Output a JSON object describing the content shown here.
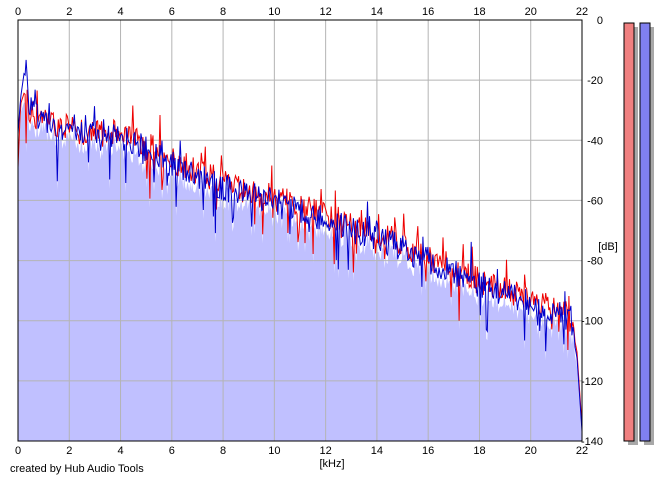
{
  "chart_data": {
    "type": "area",
    "title": "",
    "xlabel": "[kHz]",
    "ylabel": "[dB]",
    "xlim": [
      0,
      22
    ],
    "ylim": [
      -140,
      0
    ],
    "x_ticks": [
      "0",
      "2",
      "4",
      "6",
      "8",
      "10",
      "12",
      "14",
      "16",
      "18",
      "20",
      "22"
    ],
    "y_ticks": [
      "0",
      "-20",
      "-40",
      "-60",
      "-80",
      "-100",
      "-120",
      "-140"
    ],
    "y_ticks_values": [
      0,
      -20,
      -40,
      -60,
      -80,
      -100,
      -120,
      -140
    ],
    "x_ticks_values": [
      0,
      2,
      4,
      6,
      8,
      10,
      12,
      14,
      16,
      18,
      20,
      22
    ],
    "grid": true,
    "series": [
      {
        "color": "#ee0000",
        "x": [
          0,
          0.1,
          0.25,
          0.5,
          1,
          1.5,
          2,
          3,
          4,
          5,
          6,
          7,
          8,
          9,
          10,
          11,
          12,
          13,
          14,
          15,
          16,
          17,
          18,
          19,
          20,
          20.5,
          21,
          21.5,
          21.8,
          22
        ],
        "values": [
          -49,
          -28,
          -24,
          -31,
          -33,
          -35,
          -36,
          -38,
          -37,
          -41,
          -47,
          -50,
          -54,
          -57,
          -59,
          -62,
          -64,
          -68,
          -71,
          -74,
          -79,
          -82,
          -87,
          -90,
          -93,
          -95,
          -96,
          -98,
          -110,
          -135
        ]
      },
      {
        "color": "#0000cc",
        "x": [
          0,
          0.1,
          0.25,
          0.5,
          1,
          1.5,
          2,
          3,
          4,
          5,
          6,
          7,
          8,
          9,
          10,
          11,
          12,
          13,
          14,
          15,
          16,
          17,
          18,
          19,
          20,
          20.5,
          21,
          21.5,
          21.8,
          22
        ],
        "values": [
          -38,
          -26,
          -17,
          -30,
          -34,
          -36,
          -37,
          -39,
          -39,
          -43,
          -48,
          -52,
          -56,
          -58,
          -60,
          -63,
          -66,
          -70,
          -72,
          -76,
          -80,
          -84,
          -88,
          -91,
          -94,
          -96,
          -97,
          -99,
          -112,
          -137
        ]
      }
    ],
    "level_meters": [
      {
        "color": "#f08080",
        "level_db": -1
      },
      {
        "color": "#8080f0",
        "level_db": -1
      }
    ],
    "fill_color": "#c0c0ff"
  },
  "footer": {
    "credit": "created by Hub Audio Tools"
  }
}
